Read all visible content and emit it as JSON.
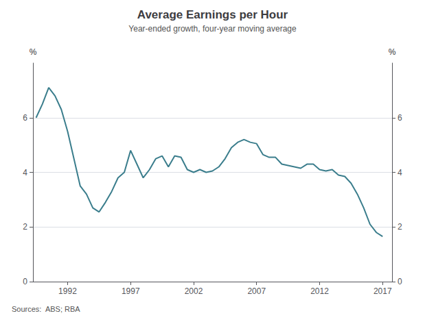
{
  "chart_data": {
    "type": "line",
    "title": "Average Earnings per Hour",
    "subtitle": "Year-ended growth, four-year moving average",
    "source": "Sources:  ABS; RBA",
    "ylabel": "%",
    "y2label": "%",
    "color": "#3a7d8c",
    "grid": true,
    "x": [
      1989.5,
      1990.0,
      1990.5,
      1991.0,
      1991.5,
      1992.0,
      1992.5,
      1993.0,
      1993.5,
      1994.0,
      1994.5,
      1995.0,
      1995.5,
      1996.0,
      1996.5,
      1997.0,
      1997.5,
      1998.0,
      1998.5,
      1999.0,
      1999.5,
      2000.0,
      2000.5,
      2001.0,
      2001.5,
      2002.0,
      2002.5,
      2003.0,
      2003.5,
      2004.0,
      2004.5,
      2005.0,
      2005.5,
      2006.0,
      2006.5,
      2007.0,
      2007.5,
      2008.0,
      2008.5,
      2009.0,
      2009.5,
      2010.0,
      2010.5,
      2011.0,
      2011.5,
      2012.0,
      2012.5,
      2013.0,
      2013.5,
      2014.0,
      2014.5,
      2015.0,
      2015.5,
      2016.0,
      2016.5,
      2017.0
    ],
    "values": [
      6.0,
      6.5,
      7.1,
      6.8,
      6.3,
      5.5,
      4.5,
      3.5,
      3.2,
      2.7,
      2.55,
      2.9,
      3.3,
      3.8,
      4.0,
      4.8,
      4.3,
      3.8,
      4.1,
      4.5,
      4.6,
      4.2,
      4.6,
      4.55,
      4.1,
      4.0,
      4.1,
      4.0,
      4.05,
      4.2,
      4.5,
      4.9,
      5.1,
      5.2,
      5.1,
      5.05,
      4.65,
      4.55,
      4.55,
      4.3,
      4.25,
      4.2,
      4.15,
      4.3,
      4.3,
      4.1,
      4.05,
      4.1,
      3.9,
      3.85,
      3.6,
      3.2,
      2.7,
      2.1,
      1.8,
      1.65
    ],
    "xlim": [
      1989.25,
      2017.75
    ],
    "xticks": [
      1992,
      1997,
      2002,
      2007,
      2012,
      2017
    ],
    "ylim": [
      0,
      8
    ],
    "yticks": [
      0,
      2,
      4,
      6
    ],
    "y2lim": [
      0,
      8
    ],
    "y2ticks": [
      0,
      2,
      4,
      6
    ]
  }
}
